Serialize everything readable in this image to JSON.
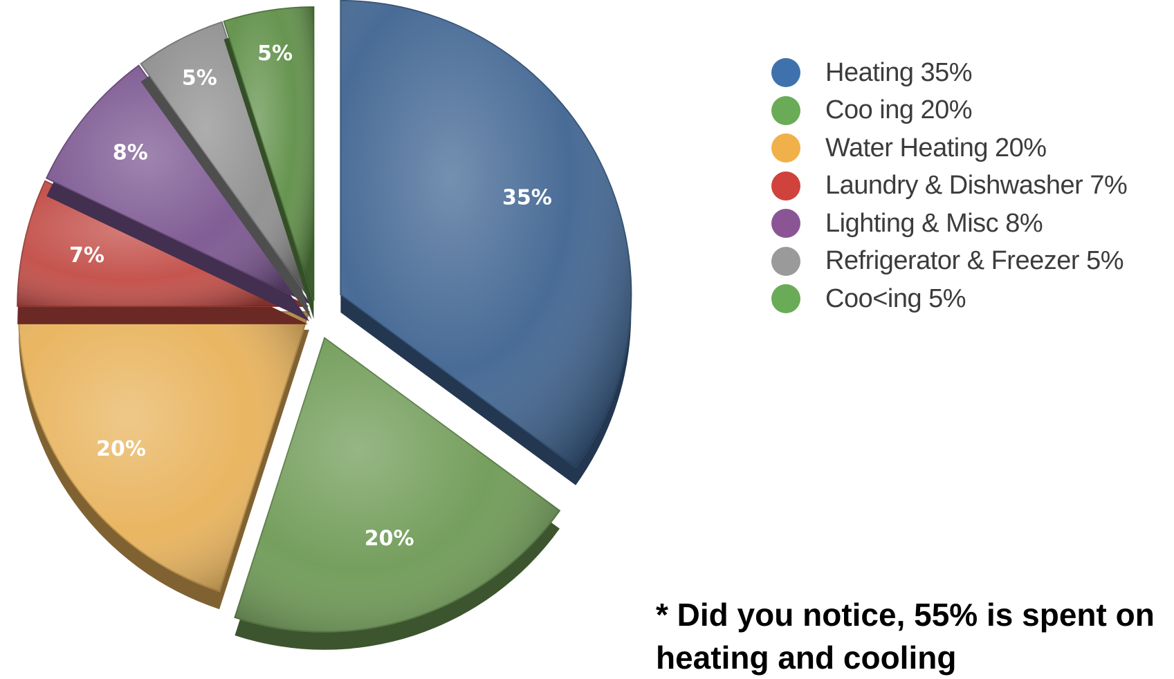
{
  "chart_data": {
    "type": "pie",
    "categories": [
      "Heating",
      "Cooling",
      "Water Heating",
      "Laundry & Dishwasher",
      "Lighting & Misc",
      "Refrigerator & Freezer",
      "Cooking"
    ],
    "values": [
      35,
      20,
      20,
      7,
      8,
      5,
      5
    ],
    "slice_labels": [
      "35%",
      "20%",
      "20%",
      "7%",
      "8%",
      "5%",
      "5%"
    ],
    "colors": [
      "#3f6491",
      "#6e9a55",
      "#e8b25a",
      "#c24b45",
      "#7a5590",
      "#8e8e8e",
      "#5f8f47"
    ],
    "legend": [
      {
        "label": "Heating 35%",
        "color": "#3f72ad"
      },
      {
        "label": "Coo ing 20%",
        "color": "#6aab57"
      },
      {
        "label": "Water Heating 20%",
        "color": "#f0b04a"
      },
      {
        "label": "Laundry & Dishwasher 7%",
        "color": "#d0423c"
      },
      {
        "label": "Lighting & Misc 8%",
        "color": "#8b5595"
      },
      {
        "label": "Refrigerator & Freezer 5%",
        "color": "#9a9a9a"
      },
      {
        "label": "Coo<ing 5%",
        "color": "#6aab57"
      }
    ],
    "legend_position": "right"
  },
  "footnote": "* Did you notice, 55% is spent on heating and cooling"
}
